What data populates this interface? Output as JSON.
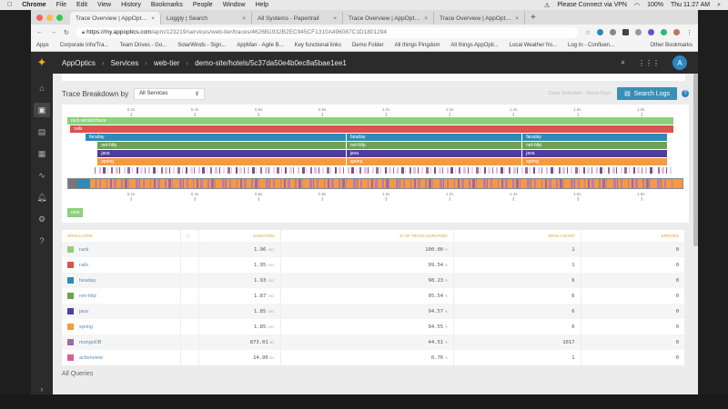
{
  "menubar": {
    "apple": "",
    "items": [
      "Chrome",
      "File",
      "Edit",
      "View",
      "History",
      "Bookmarks",
      "People",
      "Window",
      "Help"
    ],
    "status": "Please Connect via VPN",
    "battery": "100%",
    "clock": "Thu 11:27 AM"
  },
  "browser": {
    "tabs": [
      {
        "label": "Trace Overview | AppOptics",
        "active": true
      },
      {
        "label": "Loggly | Search"
      },
      {
        "label": "All Systems - Papertrail"
      },
      {
        "label": "Trace Overview | AppOptics"
      },
      {
        "label": "Trace Overview | AppOptics"
      }
    ],
    "url_host": "https://my.appoptics.com",
    "url_path": "/apm/123219/services/web-tier/traces/4626B1932B2EC945CF1310A496087C1D1801294",
    "bookmarks": [
      "Apps",
      "Corporate Info/Tra...",
      "Team Drives - Go...",
      "SolarWinds - Sign...",
      "AppMan - Agile B...",
      "Key functional links",
      "Demo Folder",
      "All things Pingdom",
      "All things AppOpti...",
      "Local Weather fro...",
      "Log In - Confluen..."
    ],
    "other_bookmarks": "Other Bookmarks"
  },
  "header": {
    "breadcrumbs": [
      "AppOptics",
      "Services",
      "web-tier",
      "demo-site/hotels/5c37da50e4b0ec8a5bae1ee1"
    ],
    "avatar": "A"
  },
  "sidebar": {
    "items": [
      "home",
      "traces",
      "dashboards",
      "integrations",
      "metrics",
      "alerts",
      "settings",
      "help"
    ],
    "expand": "›"
  },
  "breakdown": {
    "label": "Trace Breakdown by",
    "select_value": "All Services",
    "links": "Clear Selection · Show Flyer",
    "search_logs": "Search Logs",
    "help": "?"
  },
  "chart_data": {
    "type": "timeline",
    "note": "tick labels approximate; too blurry to read with certainty",
    "ticks": [
      "0.2s",
      "0.4s",
      "0.6s",
      "0.8s",
      "1.0s",
      "1.2s",
      "1.4s",
      "1.6s",
      "1.8s"
    ],
    "layers": [
      {
        "name": "rack",
        "row": 0,
        "color": "#8bd17c",
        "spans": [
          [
            0,
            1
          ]
        ],
        "label": "rack sender/trace"
      },
      {
        "name": "rails",
        "row": 1,
        "color": "#d9534f",
        "spans": [
          [
            0.005,
            1
          ]
        ]
      },
      {
        "name": "faraday",
        "row": 2,
        "color": "#2e8ab8",
        "spans": [
          [
            0.03,
            0.46
          ],
          [
            0.46,
            0.75
          ],
          [
            0.75,
            0.99
          ]
        ]
      },
      {
        "name": "net-http",
        "row": 3,
        "color": "#6fa05a",
        "spans": [
          [
            0.05,
            0.46
          ],
          [
            0.46,
            0.75
          ],
          [
            0.75,
            0.99
          ]
        ]
      },
      {
        "name": "java",
        "row": 4,
        "color": "#4b3f9e",
        "spans": [
          [
            0.05,
            0.46
          ],
          [
            0.46,
            0.75
          ],
          [
            0.75,
            0.99
          ]
        ]
      },
      {
        "name": "spring",
        "row": 5,
        "color": "#f59a42",
        "spans": [
          [
            0.05,
            0.46
          ],
          [
            0.46,
            0.75
          ],
          [
            0.75,
            0.99
          ]
        ]
      }
    ],
    "legend_tag": "rack"
  },
  "table": {
    "headers": [
      "Span Layer",
      "",
      "Duration",
      "% of Trace Duration",
      "Span Count",
      "Errors"
    ],
    "rows": [
      {
        "layer": "rack",
        "color": "#8bd17c",
        "duration": "1.96",
        "unit": "sec",
        "pct": "100.00",
        "count": "1",
        "errors": "0"
      },
      {
        "layer": "rails",
        "color": "#d9534f",
        "duration": "1.95",
        "unit": "sec",
        "pct": "99.54",
        "count": "1",
        "errors": "0"
      },
      {
        "layer": "faraday",
        "color": "#2e8ab8",
        "duration": "1.93",
        "unit": "sec",
        "pct": "98.23",
        "count": "6",
        "errors": "0"
      },
      {
        "layer": "net-http",
        "color": "#6fa05a",
        "duration": "1.87",
        "unit": "sec",
        "pct": "95.54",
        "count": "6",
        "errors": "0"
      },
      {
        "layer": "java",
        "color": "#4b3f9e",
        "duration": "1.85",
        "unit": "sec",
        "pct": "94.57",
        "count": "6",
        "errors": "0"
      },
      {
        "layer": "spring",
        "color": "#f59a42",
        "duration": "1.85",
        "unit": "sec",
        "pct": "94.55",
        "count": "6",
        "errors": "0"
      },
      {
        "layer": "mongoDB",
        "color": "#9b6aa8",
        "duration": "873.01",
        "unit": "ms",
        "pct": "44.51",
        "count": "1017",
        "errors": "0"
      },
      {
        "layer": "actionview",
        "color": "#d8609a",
        "duration": "14.90",
        "unit": "ms",
        "pct": "0.76",
        "count": "1",
        "errors": "0"
      }
    ]
  },
  "footer": {
    "all_queries": "All Queries"
  }
}
